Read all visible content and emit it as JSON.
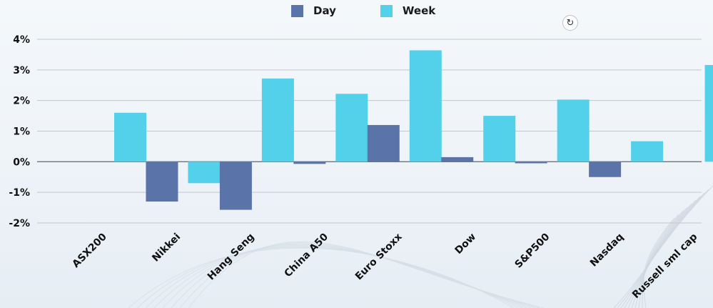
{
  "colors": {
    "day": "#5a74aa",
    "week": "#54d1ea",
    "grid": "#c3c7cc",
    "zero": "#6f747a"
  },
  "legend": {
    "day_label": "Day",
    "week_label": "Week"
  },
  "controls": {
    "refresh_icon": "refresh-icon"
  },
  "chart_data": {
    "type": "bar",
    "categories": [
      "ASX200",
      "Nikkei",
      "Hang Seng",
      "China A50",
      "Euro Stoxx",
      "Dow",
      "S&P500",
      "Nasdaq",
      "Russell sml cap"
    ],
    "series": [
      {
        "name": "Day",
        "values": [
          0.0,
          -1.3,
          -1.57,
          -0.07,
          1.2,
          0.15,
          -0.05,
          -0.5,
          0.0
        ]
      },
      {
        "name": "Week",
        "values": [
          1.6,
          -0.7,
          2.72,
          2.22,
          3.64,
          1.5,
          2.03,
          0.67,
          3.16
        ]
      }
    ],
    "ylim": [
      -2,
      4
    ],
    "yticks": [
      "-2%",
      "-1%",
      "0%",
      "1%",
      "2%",
      "3%",
      "4%"
    ],
    "grid": true,
    "legend_position": "top-center"
  }
}
